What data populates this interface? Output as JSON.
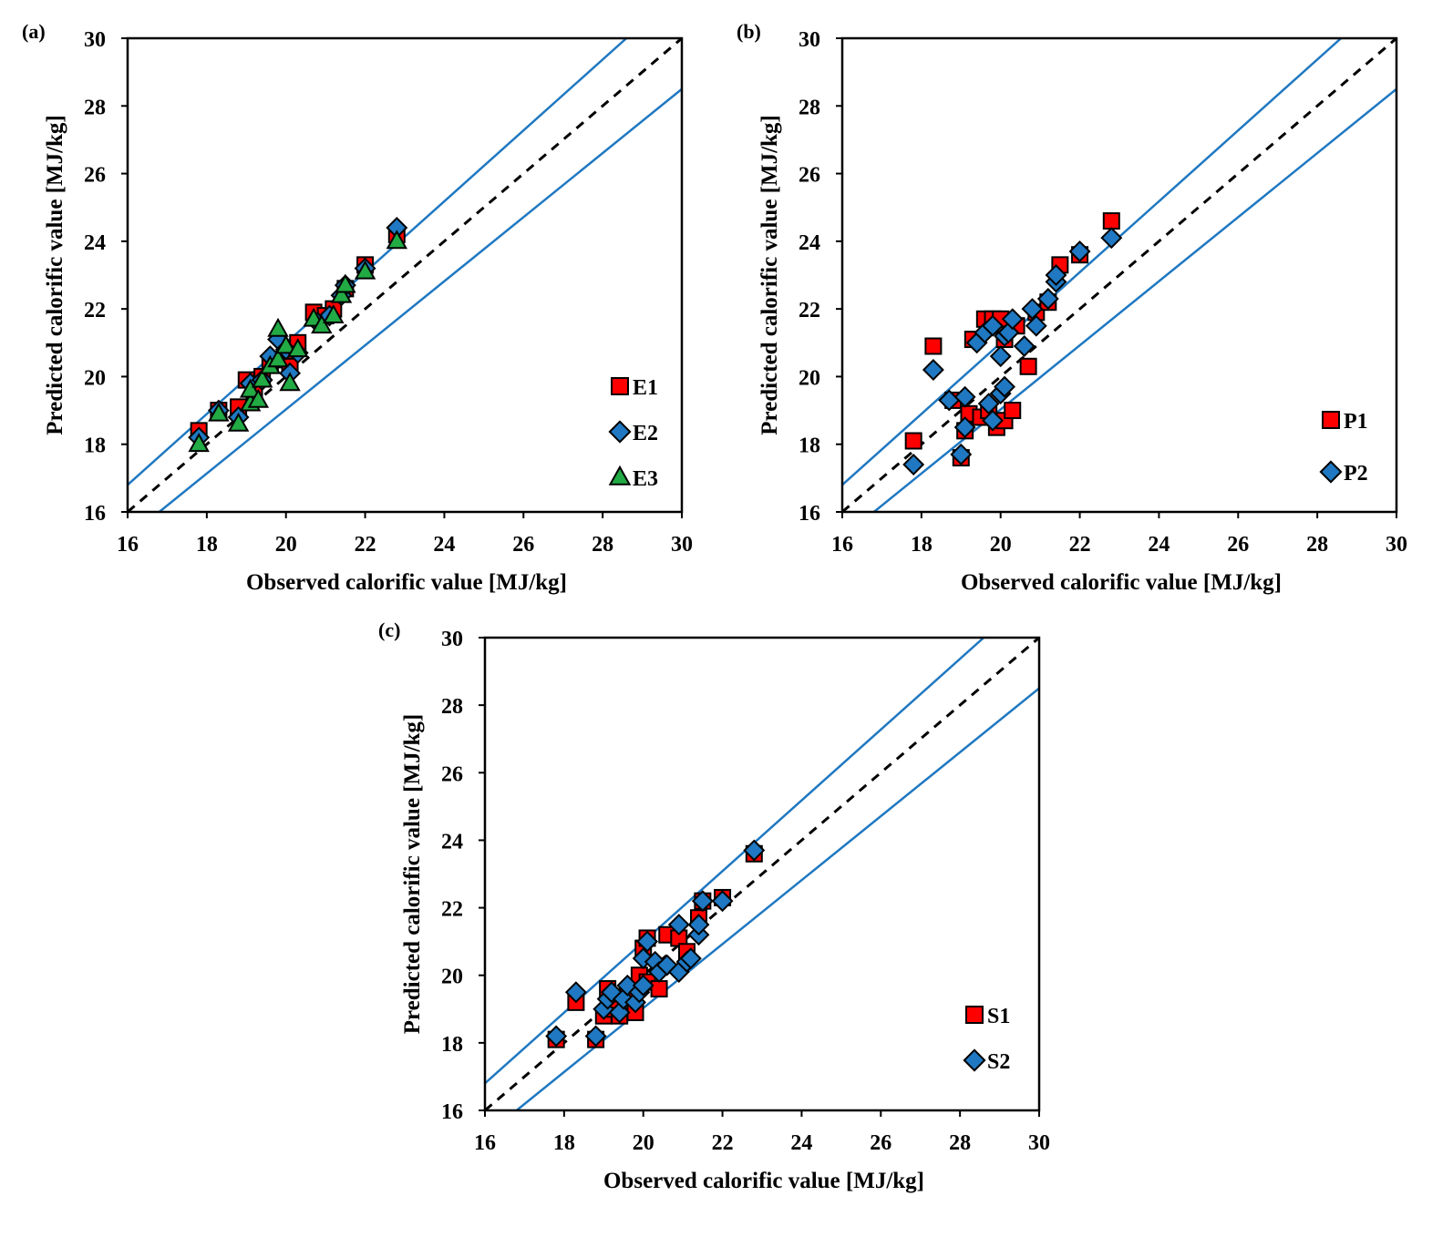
{
  "panels": [
    {
      "panel_label": "(a)",
      "chart_data": {
        "type": "scatter",
        "xlabel": "Observed calorific value [MJ/kg]",
        "ylabel": "Predicted calorific value [MJ/kg]",
        "xlim": [
          16,
          30
        ],
        "ylim": [
          16,
          30
        ],
        "xticks": [
          "16",
          "18",
          "20",
          "22",
          "24",
          "26",
          "28",
          "30"
        ],
        "yticks": [
          "16",
          "18",
          "20",
          "22",
          "24",
          "26",
          "28",
          "30"
        ],
        "grid": false,
        "legend_position": "lower-right",
        "reference_lines": [
          {
            "style": "dashed",
            "color": "#000000",
            "points": [
              [
                16,
                16
              ],
              [
                30,
                30
              ]
            ]
          },
          {
            "style": "solid",
            "color": "#1f78c1",
            "points": [
              [
                16,
                16.8
              ],
              [
                28.6,
                30
              ]
            ]
          },
          {
            "style": "solid",
            "color": "#1f78c1",
            "points": [
              [
                16.8,
                16
              ],
              [
                30,
                28.5
              ]
            ]
          }
        ],
        "series": [
          {
            "name": "E1",
            "marker": "square",
            "color": "#ff0000",
            "points": [
              [
                17.8,
                18.4
              ],
              [
                18.3,
                19.0
              ],
              [
                18.8,
                19.1
              ],
              [
                19.0,
                19.9
              ],
              [
                19.2,
                19.6
              ],
              [
                19.4,
                20.0
              ],
              [
                19.6,
                20.4
              ],
              [
                19.8,
                20.5
              ],
              [
                20.0,
                20.6
              ],
              [
                20.1,
                20.3
              ],
              [
                20.3,
                21.0
              ],
              [
                20.7,
                21.9
              ],
              [
                21.0,
                21.8
              ],
              [
                21.2,
                22.0
              ],
              [
                21.5,
                22.6
              ],
              [
                22.0,
                23.3
              ],
              [
                22.8,
                24.2
              ]
            ]
          },
          {
            "name": "E2",
            "marker": "diamond",
            "color": "#1f78c1",
            "points": [
              [
                17.8,
                18.2
              ],
              [
                18.3,
                19.0
              ],
              [
                18.8,
                18.8
              ],
              [
                19.1,
                19.8
              ],
              [
                19.4,
                19.9
              ],
              [
                19.6,
                20.6
              ],
              [
                19.8,
                21.1
              ],
              [
                20.0,
                20.8
              ],
              [
                20.1,
                20.1
              ],
              [
                20.3,
                20.7
              ],
              [
                20.8,
                21.6
              ],
              [
                21.1,
                21.8
              ],
              [
                21.4,
                22.4
              ],
              [
                21.5,
                22.7
              ],
              [
                22.0,
                23.2
              ],
              [
                22.8,
                24.4
              ]
            ]
          },
          {
            "name": "E3",
            "marker": "triangle",
            "color": "#22aa44",
            "points": [
              [
                17.8,
                18.0
              ],
              [
                18.3,
                18.9
              ],
              [
                18.8,
                18.6
              ],
              [
                19.1,
                19.2
              ],
              [
                19.1,
                19.6
              ],
              [
                19.3,
                19.3
              ],
              [
                19.4,
                19.9
              ],
              [
                19.6,
                20.3
              ],
              [
                19.8,
                20.5
              ],
              [
                19.8,
                21.4
              ],
              [
                20.0,
                20.9
              ],
              [
                20.1,
                19.8
              ],
              [
                20.3,
                20.8
              ],
              [
                20.7,
                21.7
              ],
              [
                20.9,
                21.5
              ],
              [
                21.2,
                21.8
              ],
              [
                21.4,
                22.4
              ],
              [
                21.5,
                22.7
              ],
              [
                22.0,
                23.1
              ],
              [
                22.8,
                24.0
              ]
            ]
          }
        ]
      }
    },
    {
      "panel_label": "(b)",
      "chart_data": {
        "type": "scatter",
        "xlabel": "Observed calorific value [MJ/kg]",
        "ylabel": "Predicted calorific value [MJ/kg]",
        "xlim": [
          16,
          30
        ],
        "ylim": [
          16,
          30
        ],
        "xticks": [
          "16",
          "18",
          "20",
          "22",
          "24",
          "26",
          "28",
          "30"
        ],
        "yticks": [
          "16",
          "18",
          "20",
          "22",
          "24",
          "26",
          "28",
          "30"
        ],
        "grid": false,
        "legend_position": "lower-right",
        "reference_lines": [
          {
            "style": "dashed",
            "color": "#000000",
            "points": [
              [
                16,
                16
              ],
              [
                30,
                30
              ]
            ]
          },
          {
            "style": "solid",
            "color": "#1f78c1",
            "points": [
              [
                16,
                16.8
              ],
              [
                28.6,
                30
              ]
            ]
          },
          {
            "style": "solid",
            "color": "#1f78c1",
            "points": [
              [
                16.8,
                16
              ],
              [
                30,
                28.5
              ]
            ]
          }
        ],
        "series": [
          {
            "name": "P1",
            "marker": "square",
            "color": "#ff0000",
            "points": [
              [
                17.8,
                18.1
              ],
              [
                18.3,
                20.9
              ],
              [
                18.8,
                19.3
              ],
              [
                19.0,
                17.6
              ],
              [
                19.1,
                18.4
              ],
              [
                19.2,
                18.9
              ],
              [
                19.3,
                21.1
              ],
              [
                19.5,
                18.8
              ],
              [
                19.6,
                21.7
              ],
              [
                19.7,
                19.0
              ],
              [
                19.8,
                21.7
              ],
              [
                19.9,
                18.5
              ],
              [
                20.0,
                21.7
              ],
              [
                20.1,
                21.1
              ],
              [
                20.1,
                18.7
              ],
              [
                20.3,
                19.0
              ],
              [
                20.4,
                21.5
              ],
              [
                20.7,
                20.3
              ],
              [
                20.9,
                21.9
              ],
              [
                21.2,
                22.2
              ],
              [
                21.5,
                23.3
              ],
              [
                22.0,
                23.6
              ],
              [
                22.8,
                24.6
              ]
            ]
          },
          {
            "name": "P2",
            "marker": "diamond",
            "color": "#1f78c1",
            "points": [
              [
                17.8,
                17.4
              ],
              [
                18.3,
                20.2
              ],
              [
                18.7,
                19.3
              ],
              [
                19.0,
                17.7
              ],
              [
                19.1,
                19.4
              ],
              [
                19.1,
                18.5
              ],
              [
                19.4,
                21.0
              ],
              [
                19.6,
                21.3
              ],
              [
                19.7,
                19.2
              ],
              [
                19.8,
                21.5
              ],
              [
                19.8,
                18.7
              ],
              [
                20.0,
                19.5
              ],
              [
                20.0,
                20.6
              ],
              [
                20.1,
                21.2
              ],
              [
                20.1,
                19.7
              ],
              [
                20.2,
                21.3
              ],
              [
                20.3,
                21.7
              ],
              [
                20.6,
                20.9
              ],
              [
                20.8,
                22.0
              ],
              [
                20.9,
                21.5
              ],
              [
                21.2,
                22.3
              ],
              [
                21.4,
                22.8
              ],
              [
                21.4,
                23.0
              ],
              [
                22.0,
                23.7
              ],
              [
                22.8,
                24.1
              ]
            ]
          }
        ]
      }
    },
    {
      "panel_label": "(c)",
      "chart_data": {
        "type": "scatter",
        "xlabel": "Observed calorific value [MJ/kg]",
        "ylabel": "Predicted calorific value [MJ/kg]",
        "xlim": [
          16,
          30
        ],
        "ylim": [
          16,
          30
        ],
        "xticks": [
          "16",
          "18",
          "20",
          "22",
          "24",
          "26",
          "28",
          "30"
        ],
        "yticks": [
          "16",
          "18",
          "20",
          "22",
          "24",
          "26",
          "28",
          "30"
        ],
        "grid": false,
        "legend_position": "lower-right",
        "reference_lines": [
          {
            "style": "dashed",
            "color": "#000000",
            "points": [
              [
                16,
                16
              ],
              [
                30,
                30
              ]
            ]
          },
          {
            "style": "solid",
            "color": "#1f78c1",
            "points": [
              [
                16,
                16.8
              ],
              [
                28.6,
                30
              ]
            ]
          },
          {
            "style": "solid",
            "color": "#1f78c1",
            "points": [
              [
                16.8,
                16
              ],
              [
                30,
                28.5
              ]
            ]
          }
        ],
        "series": [
          {
            "name": "S1",
            "marker": "square",
            "color": "#ff0000",
            "points": [
              [
                17.8,
                18.1
              ],
              [
                18.3,
                19.2
              ],
              [
                18.8,
                18.1
              ],
              [
                19.0,
                18.8
              ],
              [
                19.1,
                19.6
              ],
              [
                19.2,
                19.0
              ],
              [
                19.4,
                18.8
              ],
              [
                19.6,
                19.5
              ],
              [
                19.8,
                18.9
              ],
              [
                19.9,
                20.0
              ],
              [
                20.0,
                20.8
              ],
              [
                20.1,
                21.1
              ],
              [
                20.1,
                19.8
              ],
              [
                20.4,
                19.6
              ],
              [
                20.6,
                21.2
              ],
              [
                20.9,
                21.1
              ],
              [
                21.1,
                20.7
              ],
              [
                21.4,
                21.7
              ],
              [
                21.5,
                22.2
              ],
              [
                22.0,
                22.3
              ],
              [
                22.8,
                23.6
              ]
            ]
          },
          {
            "name": "S2",
            "marker": "diamond",
            "color": "#1f78c1",
            "points": [
              [
                17.8,
                18.2
              ],
              [
                18.3,
                19.5
              ],
              [
                18.8,
                18.2
              ],
              [
                19.0,
                19.0
              ],
              [
                19.1,
                19.3
              ],
              [
                19.2,
                19.5
              ],
              [
                19.4,
                18.9
              ],
              [
                19.5,
                19.3
              ],
              [
                19.6,
                19.7
              ],
              [
                19.8,
                19.2
              ],
              [
                19.9,
                19.5
              ],
              [
                20.0,
                19.7
              ],
              [
                20.0,
                20.5
              ],
              [
                20.1,
                21.0
              ],
              [
                20.3,
                20.4
              ],
              [
                20.4,
                20.1
              ],
              [
                20.6,
                20.3
              ],
              [
                20.9,
                20.1
              ],
              [
                20.9,
                21.5
              ],
              [
                21.1,
                20.4
              ],
              [
                21.2,
                20.5
              ],
              [
                21.4,
                21.2
              ],
              [
                21.4,
                21.5
              ],
              [
                21.5,
                22.2
              ],
              [
                22.0,
                22.2
              ],
              [
                22.8,
                23.7
              ]
            ]
          }
        ]
      }
    }
  ]
}
